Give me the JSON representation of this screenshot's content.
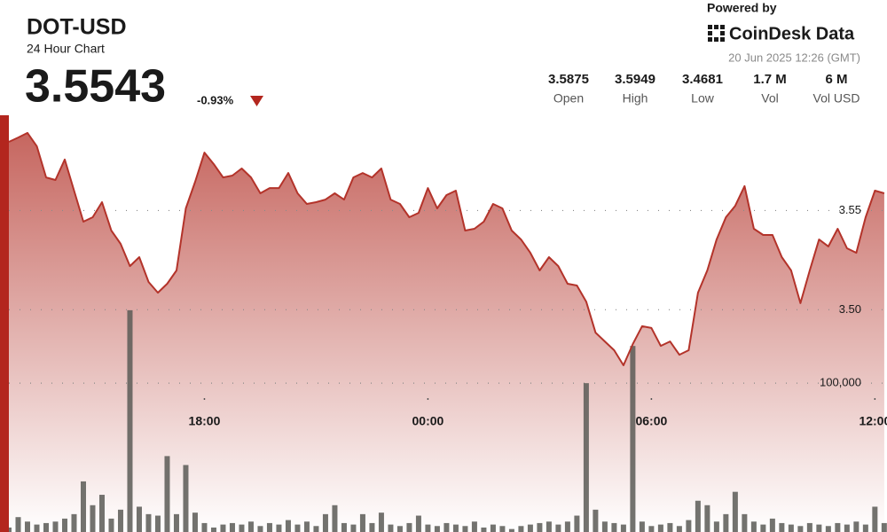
{
  "header": {
    "title": "DOT-USD",
    "subtitle": "24 Hour Chart",
    "price": "3.5543",
    "change": "-0.93%",
    "powered_by": "Powered by",
    "brand": "CoinDesk Data",
    "timestamp": "20 Jun 2025 12:26 (GMT)"
  },
  "stats": [
    {
      "value": "3.5875",
      "label": "Open"
    },
    {
      "value": "3.5949",
      "label": "High"
    },
    {
      "value": "3.4681",
      "label": "Low"
    },
    {
      "value": "1.7 M",
      "label": "Vol"
    },
    {
      "value": "6 M",
      "label": "Vol USD"
    }
  ],
  "chart_data": {
    "type": "line",
    "xlim": [
      0,
      94.3
    ],
    "xticks": [
      {
        "value": 21,
        "label": "18:00"
      },
      {
        "value": 45,
        "label": "00:00"
      },
      {
        "value": 69,
        "label": "06:00"
      },
      {
        "value": 93,
        "label": "12:00"
      }
    ],
    "ylim": [
      3.388,
      3.598
    ],
    "yticks": [
      {
        "value": 3.5,
        "label": "3.50"
      },
      3.55
    ],
    "y2lim": [
      0,
      280000
    ],
    "y2ticks": [
      {
        "value": 100000,
        "label": "100,000"
      }
    ],
    "grid": true,
    "series": [
      {
        "type": "line",
        "color": "#b3332a",
        "values": [
          3.5846,
          3.5868,
          3.5891,
          3.5824,
          3.5667,
          3.5654,
          3.5757,
          3.56,
          3.5444,
          3.5466,
          3.5542,
          3.5399,
          3.5332,
          3.522,
          3.5265,
          3.514,
          3.5086,
          3.5131,
          3.5198,
          3.5511,
          3.5645,
          3.5792,
          3.5734,
          3.5667,
          3.5676,
          3.5712,
          3.5667,
          3.5587,
          3.5613,
          3.5613,
          3.5689,
          3.5587,
          3.5533,
          3.5542,
          3.5555,
          3.5587,
          3.5555,
          3.5667,
          3.5689,
          3.5667,
          3.5712,
          3.5555,
          3.5533,
          3.5466,
          3.5488,
          3.5613,
          3.5511,
          3.5578,
          3.56,
          3.5399,
          3.5408,
          3.5444,
          3.5533,
          3.5511,
          3.5399,
          3.5354,
          3.5287,
          3.5198,
          3.5265,
          3.522,
          3.5131,
          3.5122,
          3.5041,
          3.4885,
          3.484,
          3.4796,
          3.472,
          3.4827,
          3.4917,
          3.4908,
          3.4818,
          3.484,
          3.4773,
          3.4796,
          3.5086,
          3.5198,
          3.5354,
          3.5466,
          3.5524,
          3.5623,
          3.5408,
          3.5377,
          3.5377,
          3.5265,
          3.5198,
          3.5033,
          3.5198,
          3.5354,
          3.5319,
          3.5408,
          3.531,
          3.5287,
          3.5466,
          3.56,
          3.5587
        ]
      },
      {
        "type": "bar",
        "axis": "y2",
        "color": "#5b5b56",
        "values": [
          3000,
          10000,
          7000,
          5000,
          6000,
          7000,
          9000,
          12000,
          34000,
          18000,
          25000,
          9000,
          15000,
          149000,
          17000,
          12000,
          11000,
          51000,
          12000,
          45000,
          13000,
          6000,
          3000,
          5000,
          6000,
          5000,
          7000,
          4000,
          6000,
          5000,
          8000,
          5000,
          7000,
          4000,
          12000,
          18000,
          6000,
          5000,
          12000,
          6000,
          13000,
          5000,
          4000,
          6000,
          11000,
          5000,
          4000,
          6000,
          5000,
          4000,
          7000,
          3000,
          5000,
          4000,
          2000,
          4000,
          5000,
          6000,
          7000,
          5000,
          7000,
          11000,
          100000,
          15000,
          7000,
          6000,
          5000,
          125000,
          7000,
          4000,
          5000,
          6000,
          4000,
          8000,
          21000,
          18000,
          7000,
          12000,
          27000,
          12000,
          7000,
          5000,
          9000,
          6000,
          5000,
          4000,
          6000,
          5000,
          4000,
          6000,
          5000,
          7000,
          5000,
          17000,
          6000
        ]
      }
    ]
  }
}
